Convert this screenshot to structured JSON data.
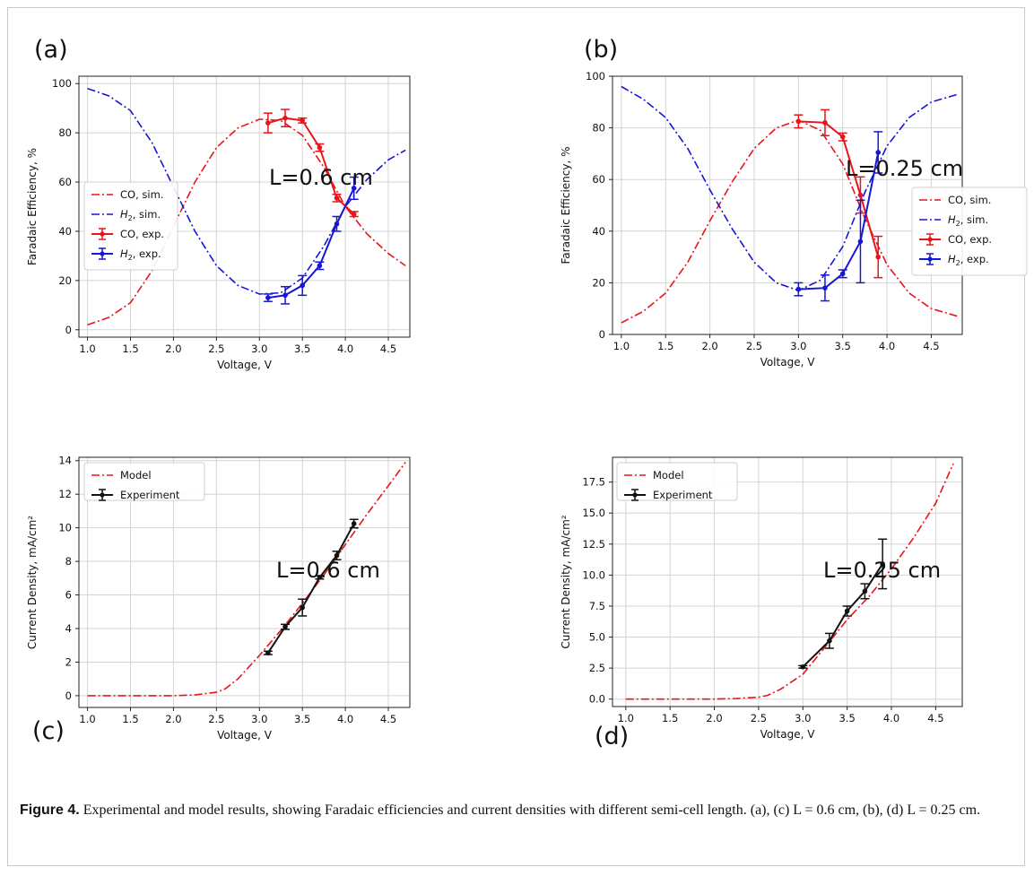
{
  "caption": {
    "label": "Figure 4.",
    "text": "Experimental and model results, showing Faradaic efficiencies and current densities with different semi-cell length. (a), (c) L = 0.6 cm, (b), (d) L = 0.25 cm."
  },
  "colors": {
    "co": "#e8141a",
    "h2": "#1616d6",
    "experiment": "#111111",
    "model": "#e8141a",
    "grid": "#d4d4d4"
  },
  "chart_data": [
    {
      "id": "a",
      "type": "line",
      "panel_label": "(a)",
      "annotation": "L=0.6 cm",
      "xlabel": "Voltage, V",
      "ylabel": "Faradaic Efficiency, %",
      "xlim": [
        0.9,
        4.75
      ],
      "ylim": [
        -3,
        103
      ],
      "xticks": [
        1.0,
        1.5,
        2.0,
        2.5,
        3.0,
        3.5,
        4.0,
        4.5
      ],
      "xtick_labels": [
        "1.0",
        "1.5",
        "2.0",
        "2.5",
        "3.0",
        "3.5",
        "4.0",
        "4.5"
      ],
      "yticks": [
        0,
        20,
        40,
        60,
        80,
        100
      ],
      "ytick_labels": [
        "0",
        "20",
        "40",
        "60",
        "80",
        "100"
      ],
      "grid": true,
      "legend_position": "center-left",
      "legend": [
        "CO, sim.",
        "H2, sim.",
        "CO, exp.",
        "H2, exp."
      ],
      "series": [
        {
          "name": "CO, sim.",
          "style": "dashdot",
          "color": "#e8141a",
          "x": [
            1.0,
            1.25,
            1.5,
            1.75,
            2.0,
            2.25,
            2.5,
            2.75,
            3.0,
            3.25,
            3.5,
            3.75,
            4.0,
            4.25,
            4.5,
            4.7
          ],
          "y": [
            2,
            5,
            11,
            24,
            42,
            60,
            74,
            82,
            85.5,
            85,
            79,
            66,
            50,
            39,
            31,
            26
          ]
        },
        {
          "name": "H2, sim.",
          "style": "dashdot",
          "color": "#1616d6",
          "x": [
            1.0,
            1.25,
            1.5,
            1.75,
            2.0,
            2.25,
            2.5,
            2.75,
            3.0,
            3.25,
            3.5,
            3.75,
            4.0,
            4.25,
            4.5,
            4.7
          ],
          "y": [
            98,
            95,
            89,
            76,
            58,
            40,
            26,
            18,
            14.5,
            15,
            21,
            34,
            50,
            61,
            69,
            73
          ]
        },
        {
          "name": "CO, exp.",
          "style": "solid",
          "color": "#e8141a",
          "x": [
            3.1,
            3.3,
            3.5,
            3.7,
            3.9,
            4.1
          ],
          "y": [
            84,
            86,
            85,
            74,
            53.5,
            47
          ],
          "err": [
            4,
            3.5,
            1,
            1.5,
            1.5,
            1
          ]
        },
        {
          "name": "H2, exp.",
          "style": "solid",
          "color": "#1616d6",
          "x": [
            3.1,
            3.3,
            3.5,
            3.7,
            3.9,
            4.1
          ],
          "y": [
            13,
            14,
            18,
            26,
            43,
            57.5
          ],
          "err": [
            1.5,
            3.5,
            4,
            1.5,
            3,
            4.5
          ]
        }
      ]
    },
    {
      "id": "b",
      "type": "line",
      "panel_label": "(b)",
      "annotation": "L=0.25 cm",
      "xlabel": "Voltage, V",
      "ylabel": "Faradaic Efficiency, %",
      "xlim": [
        0.9,
        4.85
      ],
      "ylim": [
        0,
        100
      ],
      "xticks": [
        1.0,
        1.5,
        2.0,
        2.5,
        3.0,
        3.5,
        4.0,
        4.5
      ],
      "xtick_labels": [
        "1.0",
        "1.5",
        "2.0",
        "2.5",
        "3.0",
        "3.5",
        "4.0",
        "4.5"
      ],
      "yticks": [
        0,
        20,
        40,
        60,
        80,
        100
      ],
      "ytick_labels": [
        "0",
        "20",
        "40",
        "60",
        "80",
        "100"
      ],
      "grid": true,
      "legend_position": "center-right",
      "legend": [
        "CO, sim.",
        "H2, sim.",
        "CO, exp.",
        "H2, exp."
      ],
      "series": [
        {
          "name": "CO, sim.",
          "style": "dashdot",
          "color": "#e8141a",
          "x": [
            1.0,
            1.25,
            1.5,
            1.75,
            2.0,
            2.25,
            2.5,
            2.75,
            3.0,
            3.25,
            3.5,
            3.75,
            4.0,
            4.25,
            4.5,
            4.8
          ],
          "y": [
            4.5,
            9,
            16,
            28,
            44,
            59,
            72,
            80,
            83,
            79,
            66,
            45,
            27,
            16,
            10,
            7
          ]
        },
        {
          "name": "H2, sim.",
          "style": "dashdot",
          "color": "#1616d6",
          "x": [
            1.0,
            1.25,
            1.5,
            1.75,
            2.0,
            2.25,
            2.5,
            2.75,
            3.0,
            3.25,
            3.5,
            3.75,
            4.0,
            4.25,
            4.5,
            4.8
          ],
          "y": [
            96,
            91,
            84,
            72,
            56,
            41,
            28,
            20,
            17,
            21,
            34,
            55,
            73,
            84,
            90,
            93
          ]
        },
        {
          "name": "CO, exp.",
          "style": "solid",
          "color": "#e8141a",
          "x": [
            3.0,
            3.3,
            3.5,
            3.7,
            3.9
          ],
          "y": [
            82.5,
            82,
            76.5,
            54,
            30
          ],
          "err": [
            2.5,
            5,
            1.5,
            7,
            8
          ]
        },
        {
          "name": "H2, exp.",
          "style": "solid",
          "color": "#1616d6",
          "x": [
            3.0,
            3.3,
            3.5,
            3.7,
            3.9
          ],
          "y": [
            17.5,
            18,
            23.5,
            36,
            70.5
          ],
          "err": [
            2.5,
            5,
            1.5,
            16,
            8
          ]
        }
      ]
    },
    {
      "id": "c",
      "type": "line",
      "panel_label": "(c)",
      "annotation": "L=0.6 cm",
      "xlabel": "Voltage, V",
      "ylabel": "Current Density, mA/cm²",
      "xlim": [
        0.9,
        4.75
      ],
      "ylim": [
        -0.7,
        14.2
      ],
      "xticks": [
        1.0,
        1.5,
        2.0,
        2.5,
        3.0,
        3.5,
        4.0,
        4.5
      ],
      "xtick_labels": [
        "1.0",
        "1.5",
        "2.0",
        "2.5",
        "3.0",
        "3.5",
        "4.0",
        "4.5"
      ],
      "yticks": [
        0,
        2,
        4,
        6,
        8,
        10,
        12,
        14
      ],
      "ytick_labels": [
        "0",
        "2",
        "4",
        "6",
        "8",
        "10",
        "12",
        "14"
      ],
      "grid": true,
      "legend_position": "top-left",
      "legend": [
        "Model",
        "Experiment"
      ],
      "series": [
        {
          "name": "Model",
          "style": "dashdot",
          "color": "#e8141a",
          "x": [
            1.0,
            1.5,
            2.0,
            2.25,
            2.5,
            2.6,
            2.75,
            3.0,
            3.25,
            3.5,
            3.75,
            4.0,
            4.25,
            4.5,
            4.7
          ],
          "y": [
            0,
            0,
            0,
            0.05,
            0.2,
            0.4,
            1.0,
            2.4,
            3.9,
            5.5,
            7.2,
            9.0,
            10.8,
            12.5,
            13.9
          ]
        },
        {
          "name": "Experiment",
          "style": "solid",
          "color": "#111111",
          "x": [
            3.1,
            3.3,
            3.5,
            3.7,
            3.9,
            4.1
          ],
          "y": [
            2.55,
            4.1,
            5.25,
            7.05,
            8.35,
            10.25
          ],
          "err": [
            0.1,
            0.15,
            0.5,
            0.1,
            0.25,
            0.25
          ]
        }
      ]
    },
    {
      "id": "d",
      "type": "line",
      "panel_label": "(d)",
      "annotation": "L=0.25 cm",
      "xlabel": "Voltage, V",
      "ylabel": "Current Density, mA/cm²",
      "xlim": [
        0.85,
        4.8
      ],
      "ylim": [
        -0.6,
        19.5
      ],
      "xticks": [
        1.0,
        1.5,
        2.0,
        2.5,
        3.0,
        3.5,
        4.0,
        4.5
      ],
      "xtick_labels": [
        "1.0",
        "1.5",
        "2.0",
        "2.5",
        "3.0",
        "3.5",
        "4.0",
        "4.5"
      ],
      "yticks": [
        0,
        2.5,
        5.0,
        7.5,
        10.0,
        12.5,
        15.0,
        17.5
      ],
      "ytick_labels": [
        "0.0",
        "2.5",
        "5.0",
        "7.5",
        "10.0",
        "12.5",
        "15.0",
        "17.5"
      ],
      "grid": true,
      "legend_position": "top-left",
      "legend": [
        "Model",
        "Experiment"
      ],
      "series": [
        {
          "name": "Model",
          "style": "dashdot",
          "color": "#e8141a",
          "x": [
            1.0,
            1.5,
            2.0,
            2.25,
            2.5,
            2.6,
            2.75,
            3.0,
            3.25,
            3.5,
            3.75,
            4.0,
            4.25,
            4.5,
            4.7
          ],
          "y": [
            0,
            0,
            0,
            0.05,
            0.15,
            0.3,
            0.8,
            2.0,
            4.2,
            6.4,
            8.3,
            10.5,
            13.0,
            15.8,
            19.0
          ]
        },
        {
          "name": "Experiment",
          "style": "solid",
          "color": "#111111",
          "x": [
            3.0,
            3.3,
            3.5,
            3.7,
            3.9
          ],
          "y": [
            2.6,
            4.7,
            7.1,
            8.7,
            10.9
          ],
          "err": [
            0.1,
            0.6,
            0.4,
            0.6,
            2.0
          ]
        }
      ]
    }
  ]
}
